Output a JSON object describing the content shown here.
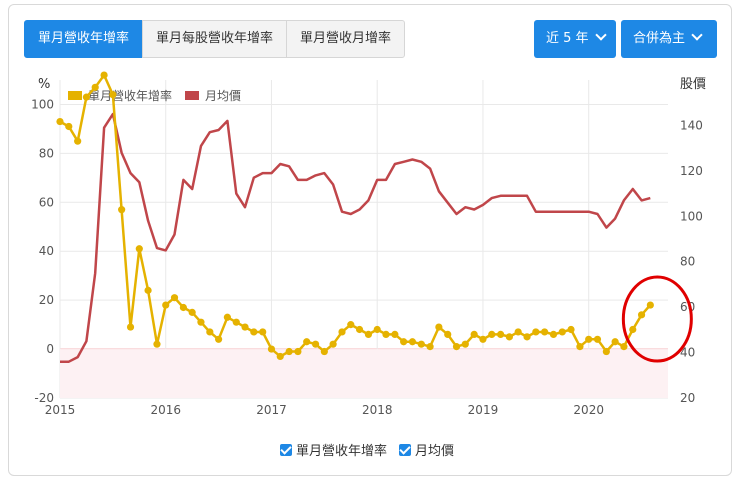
{
  "tabs": [
    {
      "label": "單月營收年增率"
    },
    {
      "label": "單月每股營收年增率"
    },
    {
      "label": "單月營收月增率"
    }
  ],
  "controls": {
    "period_label": "近 5 年",
    "consolidation_label": "合併為主"
  },
  "colors": {
    "revenue_yoy": "#e5b200",
    "price": "#c0464a",
    "accent": "#1e88e5",
    "highlight": "#e00000"
  },
  "chart_data": {
    "type": "line",
    "left_unit": "%",
    "right_unit": "股價",
    "left_ylim": [
      -20,
      110
    ],
    "left_ticks": [
      -20,
      0,
      20,
      40,
      60,
      80,
      100
    ],
    "right_ylim": [
      20,
      160
    ],
    "right_ticks": [
      20,
      40,
      60,
      80,
      100,
      120,
      140
    ],
    "x_range": [
      2015,
      2020.75
    ],
    "x_ticks": [
      2015,
      2016,
      2017,
      2018,
      2019,
      2020
    ],
    "grid": true,
    "legend_placement": "top-left",
    "annotation": "red circle around latest revenue growth values",
    "series": [
      {
        "name": "單月營收年增率",
        "axis": "left",
        "points": [
          [
            2015.0,
            93
          ],
          [
            2015.083,
            91
          ],
          [
            2015.167,
            85
          ],
          [
            2015.25,
            103
          ],
          [
            2015.333,
            107
          ],
          [
            2015.417,
            112
          ],
          [
            2015.5,
            104
          ],
          [
            2015.583,
            57
          ],
          [
            2015.667,
            9
          ],
          [
            2015.75,
            41
          ],
          [
            2015.833,
            24
          ],
          [
            2015.917,
            2
          ],
          [
            2016.0,
            18
          ],
          [
            2016.083,
            21
          ],
          [
            2016.167,
            17
          ],
          [
            2016.25,
            15
          ],
          [
            2016.333,
            11
          ],
          [
            2016.417,
            7
          ],
          [
            2016.5,
            4
          ],
          [
            2016.583,
            13
          ],
          [
            2016.667,
            11
          ],
          [
            2016.75,
            9
          ],
          [
            2016.833,
            7
          ],
          [
            2016.917,
            7
          ],
          [
            2017.0,
            0
          ],
          [
            2017.083,
            -3
          ],
          [
            2017.167,
            -1
          ],
          [
            2017.25,
            -1
          ],
          [
            2017.333,
            3
          ],
          [
            2017.417,
            2
          ],
          [
            2017.5,
            -1
          ],
          [
            2017.583,
            2
          ],
          [
            2017.667,
            7
          ],
          [
            2017.75,
            10
          ],
          [
            2017.833,
            8
          ],
          [
            2017.917,
            6
          ],
          [
            2018.0,
            8
          ],
          [
            2018.083,
            6
          ],
          [
            2018.167,
            6
          ],
          [
            2018.25,
            3
          ],
          [
            2018.333,
            3
          ],
          [
            2018.417,
            2
          ],
          [
            2018.5,
            1
          ],
          [
            2018.583,
            9
          ],
          [
            2018.667,
            6
          ],
          [
            2018.75,
            1
          ],
          [
            2018.833,
            2
          ],
          [
            2018.917,
            6
          ],
          [
            2019.0,
            4
          ],
          [
            2019.083,
            6
          ],
          [
            2019.167,
            6
          ],
          [
            2019.25,
            5
          ],
          [
            2019.333,
            7
          ],
          [
            2019.417,
            5
          ],
          [
            2019.5,
            7
          ],
          [
            2019.583,
            7
          ],
          [
            2019.667,
            6
          ],
          [
            2019.75,
            7
          ],
          [
            2019.833,
            8
          ],
          [
            2019.917,
            1
          ],
          [
            2020.0,
            4
          ],
          [
            2020.083,
            4
          ],
          [
            2020.167,
            -1
          ],
          [
            2020.25,
            3
          ],
          [
            2020.333,
            1
          ],
          [
            2020.417,
            8
          ],
          [
            2020.5,
            14
          ],
          [
            2020.583,
            18
          ]
        ]
      },
      {
        "name": "月均價",
        "axis": "right",
        "points": [
          [
            2015.0,
            36
          ],
          [
            2015.083,
            36
          ],
          [
            2015.167,
            38
          ],
          [
            2015.25,
            45
          ],
          [
            2015.333,
            75
          ],
          [
            2015.417,
            139
          ],
          [
            2015.5,
            145
          ],
          [
            2015.583,
            128
          ],
          [
            2015.667,
            119
          ],
          [
            2015.75,
            115
          ],
          [
            2015.833,
            98
          ],
          [
            2015.917,
            86
          ],
          [
            2016.0,
            85
          ],
          [
            2016.083,
            92
          ],
          [
            2016.167,
            116
          ],
          [
            2016.25,
            112
          ],
          [
            2016.333,
            131
          ],
          [
            2016.417,
            137
          ],
          [
            2016.5,
            138
          ],
          [
            2016.583,
            142
          ],
          [
            2016.667,
            110
          ],
          [
            2016.75,
            104
          ],
          [
            2016.833,
            117
          ],
          [
            2016.917,
            119
          ],
          [
            2017.0,
            119
          ],
          [
            2017.083,
            123
          ],
          [
            2017.167,
            122
          ],
          [
            2017.25,
            116
          ],
          [
            2017.333,
            116
          ],
          [
            2017.417,
            118
          ],
          [
            2017.5,
            119
          ],
          [
            2017.583,
            114
          ],
          [
            2017.667,
            102
          ],
          [
            2017.75,
            101
          ],
          [
            2017.833,
            103
          ],
          [
            2017.917,
            107
          ],
          [
            2018.0,
            116
          ],
          [
            2018.083,
            116
          ],
          [
            2018.167,
            123
          ],
          [
            2018.25,
            124
          ],
          [
            2018.333,
            125
          ],
          [
            2018.417,
            124
          ],
          [
            2018.5,
            121
          ],
          [
            2018.583,
            111
          ],
          [
            2018.667,
            106
          ],
          [
            2018.75,
            101
          ],
          [
            2018.833,
            104
          ],
          [
            2018.917,
            103
          ],
          [
            2019.0,
            105
          ],
          [
            2019.083,
            108
          ],
          [
            2019.167,
            109
          ],
          [
            2019.25,
            109
          ],
          [
            2019.333,
            109
          ],
          [
            2019.417,
            109
          ],
          [
            2019.5,
            102
          ],
          [
            2019.583,
            102
          ],
          [
            2019.667,
            102
          ],
          [
            2019.75,
            102
          ],
          [
            2019.833,
            102
          ],
          [
            2019.917,
            102
          ],
          [
            2020.0,
            102
          ],
          [
            2020.083,
            101
          ],
          [
            2020.167,
            95
          ],
          [
            2020.25,
            99
          ],
          [
            2020.333,
            107
          ],
          [
            2020.417,
            112
          ],
          [
            2020.5,
            107
          ],
          [
            2020.583,
            108
          ]
        ]
      }
    ]
  }
}
